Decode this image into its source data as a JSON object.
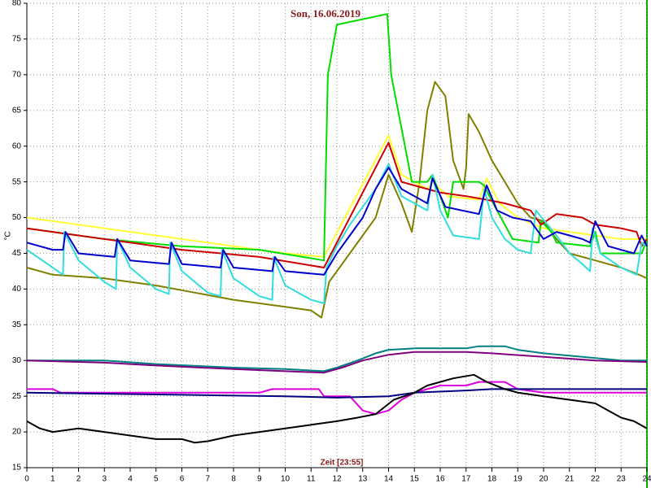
{
  "chart_data": {
    "type": "line",
    "title": "Son, 16.06.2019",
    "x_label": "Zeit [23:55]",
    "y_label": "°C",
    "xlim": [
      0,
      24
    ],
    "xticks": [
      0,
      1,
      2,
      3,
      4,
      5,
      6,
      7,
      8,
      9,
      10,
      11,
      12,
      13,
      14,
      15,
      16,
      17,
      18,
      19,
      20,
      21,
      22,
      23,
      24
    ],
    "ylim": [
      15,
      80
    ],
    "yticks": [
      15,
      20,
      25,
      30,
      35,
      40,
      45,
      50,
      55,
      60,
      65,
      70,
      75,
      80
    ],
    "grid": true,
    "series": [
      {
        "color": "#808000",
        "x": [
          0,
          1,
          3,
          5,
          6.5,
          8,
          10,
          11,
          11.4,
          11.7,
          12.5,
          13.5,
          14,
          14.5,
          14.9,
          15.2,
          15.5,
          15.8,
          16.2,
          16.5,
          16.9,
          17,
          17.1,
          17.5,
          18,
          18.5,
          19,
          19.5,
          20,
          20.5,
          21,
          22,
          23,
          23.7,
          24
        ],
        "values": [
          43,
          42,
          41.5,
          40.5,
          39.5,
          38.5,
          37.5,
          37,
          36,
          41,
          45,
          50,
          56,
          52,
          48,
          55,
          65,
          69,
          67,
          58,
          54,
          57,
          64.5,
          62,
          58,
          55,
          52,
          50,
          49.5,
          47,
          45,
          44,
          43,
          42,
          41.5
        ]
      },
      {
        "color": "#ffff33",
        "x": [
          0,
          2,
          4,
          6,
          8,
          10,
          11.5,
          14,
          14.5,
          15.5,
          15.7,
          16.3,
          17.5,
          17.8,
          18.3,
          19,
          20,
          21,
          22,
          23,
          24
        ],
        "values": [
          50,
          49,
          48,
          47,
          46,
          45,
          44.5,
          61.5,
          56,
          54,
          55,
          53,
          52.5,
          55.5,
          52,
          50,
          48.5,
          48,
          47.5,
          47,
          47
        ]
      },
      {
        "color": "#00dd00",
        "x": [
          0,
          3,
          6,
          9,
          11.5,
          11.65,
          12,
          13.95,
          14.1,
          14.9,
          15.5,
          15.7,
          16.3,
          16.5,
          17.5,
          17.7,
          17.9,
          18.8,
          19.8,
          19.9,
          20.3,
          20.5,
          21.8,
          22,
          22.2,
          23.8,
          24
        ],
        "values": [
          48.5,
          47,
          46,
          45.5,
          44,
          70,
          77,
          78.5,
          70,
          55,
          55,
          56,
          50,
          55,
          55,
          54.5,
          53,
          47,
          46.5,
          49.5,
          48,
          46.5,
          46,
          48,
          45,
          45,
          47
        ]
      },
      {
        "color": "#cc0000",
        "x": [
          0,
          3,
          6,
          9,
          11.5,
          14,
          14.5,
          15.5,
          16,
          17,
          17.8,
          18.5,
          19.5,
          19.9,
          20.5,
          21.5,
          22,
          23,
          23.6,
          23.8,
          24
        ],
        "values": [
          48.5,
          47,
          45.5,
          44.5,
          43,
          60.5,
          55,
          54,
          53.5,
          53,
          52.5,
          52,
          51,
          49,
          50.5,
          50,
          49,
          48.5,
          48,
          46,
          47
        ]
      },
      {
        "color": "#33dddd",
        "x": [
          0,
          1,
          1.4,
          1.45,
          2,
          3,
          3.45,
          3.5,
          4,
          5,
          5.5,
          5.55,
          6,
          7,
          7.5,
          7.55,
          8,
          9,
          9.5,
          9.55,
          10,
          11,
          11.5,
          11.6,
          12,
          12.5,
          13.5,
          14,
          14.5,
          15,
          15.5,
          15.7,
          16,
          16.5,
          17.5,
          17.7,
          18,
          18.5,
          19,
          19.5,
          19.7,
          20.5,
          21,
          21.5,
          21.8,
          21.9,
          22.2,
          23,
          23.6,
          23.8,
          24
        ],
        "values": [
          45.5,
          43,
          42,
          48,
          44,
          41,
          40,
          47,
          43,
          40,
          39.3,
          46.5,
          42.5,
          39.5,
          39,
          45.5,
          41.5,
          39,
          38.5,
          44.5,
          40.5,
          38.5,
          38,
          43,
          46,
          49,
          54,
          57.5,
          53,
          52,
          51,
          56,
          51,
          47.5,
          47,
          54,
          50,
          47,
          45.5,
          45,
          51,
          47.5,
          45,
          43.5,
          42.5,
          48.5,
          45,
          43,
          42,
          46.5,
          46
        ]
      },
      {
        "color": "#0000cc",
        "x": [
          0,
          1,
          1.4,
          1.5,
          2,
          3.4,
          3.5,
          4,
          5.5,
          5.6,
          6,
          7.5,
          7.6,
          8,
          9.5,
          9.6,
          10,
          11.5,
          12,
          13,
          13.5,
          14,
          14.5,
          15.5,
          15.7,
          16.2,
          17.5,
          17.8,
          18.2,
          18.8,
          19.5,
          20,
          20.5,
          21.5,
          21.8,
          22,
          22.5,
          23.5,
          23.8,
          24
        ],
        "values": [
          46.5,
          45.5,
          45.5,
          48,
          45,
          44.5,
          47,
          44,
          43.5,
          46.5,
          43.5,
          43,
          45.5,
          43,
          42.5,
          44.5,
          42.5,
          42,
          45,
          50,
          54,
          57,
          54,
          52,
          55.5,
          51.5,
          50.5,
          54.5,
          51,
          50,
          49.5,
          47,
          48,
          47,
          46.5,
          49.5,
          46,
          45,
          47.5,
          46
        ]
      },
      {
        "color": "#008080",
        "x": [
          0,
          3,
          5,
          8,
          10,
          11.5,
          12,
          12.8,
          13.5,
          14,
          15,
          17,
          17.5,
          18.5,
          19,
          20,
          21.5,
          23,
          24
        ],
        "values": [
          30,
          30,
          29.5,
          29,
          28.8,
          28.5,
          29,
          30,
          31,
          31.5,
          31.7,
          31.7,
          32,
          32,
          31.5,
          31,
          30.5,
          30,
          30
        ]
      },
      {
        "color": "#800080",
        "x": [
          0,
          3,
          5,
          8,
          10,
          11.5,
          12.2,
          13,
          14,
          15,
          17,
          18,
          20,
          22,
          24
        ],
        "values": [
          30,
          29.7,
          29.3,
          28.8,
          28.5,
          28.3,
          29,
          30,
          30.8,
          31.2,
          31.2,
          31,
          30.5,
          30,
          29.8
        ]
      },
      {
        "color": "#dd00dd",
        "x": [
          0,
          1,
          1.3,
          9,
          9.5,
          11.3,
          11.5,
          12.5,
          13,
          13.5,
          14,
          14.5,
          15,
          15.5,
          16,
          17,
          17.5,
          18.5,
          19,
          20,
          24
        ],
        "values": [
          26,
          26,
          25.5,
          25.5,
          26,
          26,
          25,
          25,
          23,
          22.5,
          23,
          24.5,
          25.5,
          26,
          26.5,
          26.5,
          27,
          27,
          26,
          25.5,
          25.5
        ]
      },
      {
        "color": "#000080",
        "x": [
          0,
          6,
          10,
          12,
          14,
          15,
          17,
          18,
          20,
          24
        ],
        "values": [
          25.5,
          25.2,
          25,
          24.8,
          25,
          25.5,
          25.8,
          26,
          26,
          26
        ]
      },
      {
        "color": "#000000",
        "x": [
          0,
          0.5,
          1,
          2,
          3,
          4,
          5,
          6,
          6.5,
          7,
          8,
          9,
          10,
          11,
          12,
          12.8,
          13.5,
          14.2,
          15,
          15.5,
          16,
          16.5,
          17.3,
          17.8,
          18.5,
          19,
          20,
          21,
          22,
          22.5,
          23,
          23.5,
          24
        ],
        "values": [
          21.5,
          20.5,
          20,
          20.5,
          20,
          19.5,
          19,
          19,
          18.5,
          18.7,
          19.5,
          20,
          20.5,
          21,
          21.5,
          22,
          22.5,
          24.5,
          25.5,
          26.5,
          27,
          27.5,
          28,
          27,
          26,
          25.5,
          25,
          24.5,
          24,
          23,
          22,
          21.5,
          20.5
        ]
      }
    ]
  }
}
